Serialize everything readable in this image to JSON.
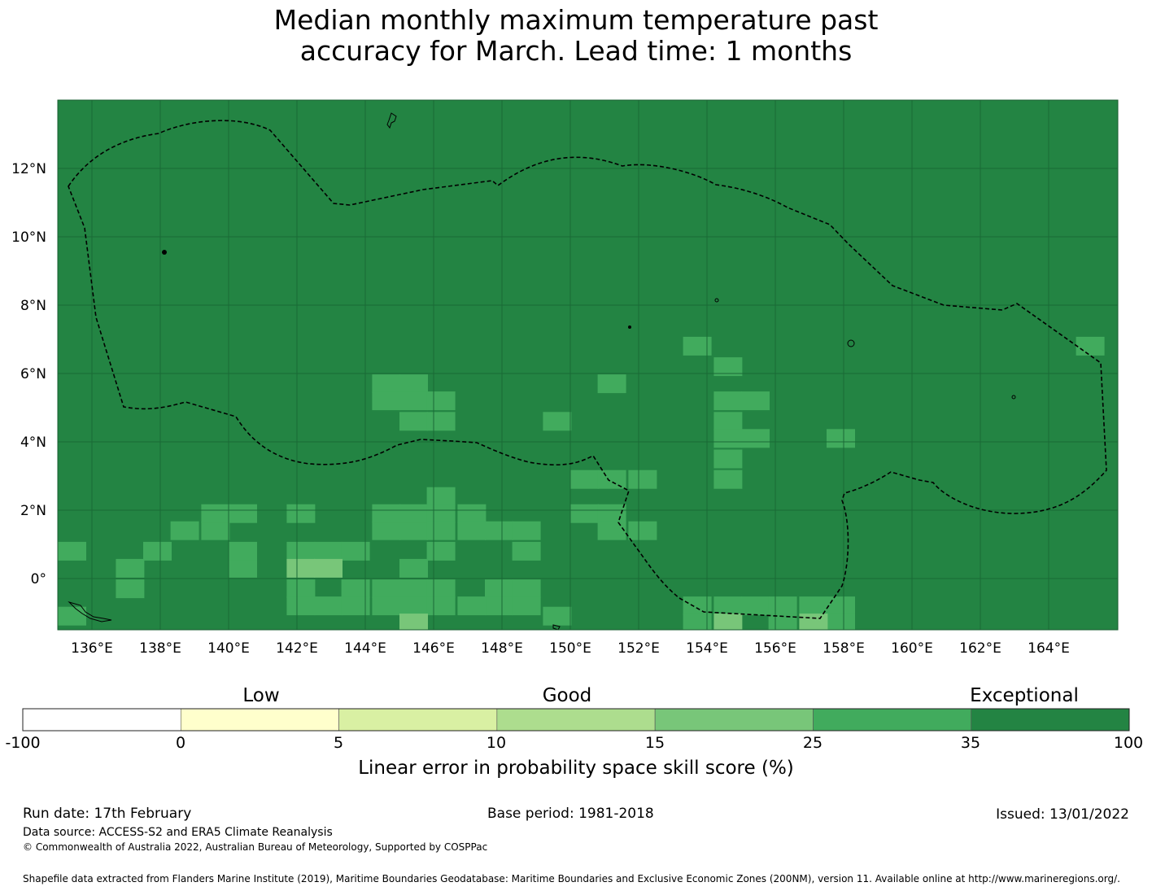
{
  "title": {
    "line1": "Median monthly maximum temperature past",
    "line2": "accuracy for March. Lead time: 1 months"
  },
  "map": {
    "lon_range": [
      135,
      166
    ],
    "lat_range": [
      -1.5,
      14
    ],
    "background_color": "#238443",
    "lon_ticks": [
      "136°E",
      "138°E",
      "140°E",
      "142°E",
      "144°E",
      "146°E",
      "148°E",
      "150°E",
      "152°E",
      "154°E",
      "156°E",
      "158°E",
      "160°E",
      "162°E",
      "164°E"
    ],
    "lat_ticks": [
      "12°N",
      "10°N",
      "8°N",
      "6°N",
      "4°N",
      "2°N",
      "0°"
    ],
    "grid": true,
    "boundary": "dashed EEZ outline",
    "cells_note": "skill class per 5/6-degree grid cell",
    "cells": [
      {
        "lon": 135.0,
        "lat": 0.8,
        "class": "25-35"
      },
      {
        "lon": 135.0,
        "lat": -1.1,
        "class": "25-35"
      },
      {
        "lon": 136.7,
        "lat": -0.3,
        "class": "25-35"
      },
      {
        "lon": 136.7,
        "lat": 0.3,
        "class": "25-35"
      },
      {
        "lon": 137.5,
        "lat": 0.8,
        "class": "25-35"
      },
      {
        "lon": 138.3,
        "lat": 1.4,
        "class": "25-35"
      },
      {
        "lon": 139.2,
        "lat": 1.4,
        "class": "25-35"
      },
      {
        "lon": 139.2,
        "lat": 1.9,
        "class": "25-35"
      },
      {
        "lon": 140.0,
        "lat": 1.9,
        "class": "25-35"
      },
      {
        "lon": 140.0,
        "lat": 0.3,
        "class": "25-35"
      },
      {
        "lon": 140.0,
        "lat": 0.8,
        "class": "25-35"
      },
      {
        "lon": 141.7,
        "lat": 1.9,
        "class": "25-35"
      },
      {
        "lon": 141.7,
        "lat": 0.8,
        "class": "25-35"
      },
      {
        "lon": 142.5,
        "lat": 0.8,
        "class": "25-35"
      },
      {
        "lon": 143.3,
        "lat": 0.8,
        "class": "25-35"
      },
      {
        "lon": 141.7,
        "lat": 0.3,
        "class": "15-25"
      },
      {
        "lon": 142.5,
        "lat": 0.3,
        "class": "15-25"
      },
      {
        "lon": 141.7,
        "lat": -0.3,
        "class": "25-35"
      },
      {
        "lon": 141.7,
        "lat": -0.8,
        "class": "25-35"
      },
      {
        "lon": 142.5,
        "lat": -0.8,
        "class": "25-35"
      },
      {
        "lon": 143.3,
        "lat": -0.3,
        "class": "25-35"
      },
      {
        "lon": 143.3,
        "lat": -0.8,
        "class": "25-35"
      },
      {
        "lon": 144.2,
        "lat": -0.3,
        "class": "25-35"
      },
      {
        "lon": 144.2,
        "lat": -0.8,
        "class": "25-35"
      },
      {
        "lon": 144.2,
        "lat": 1.4,
        "class": "25-35"
      },
      {
        "lon": 144.2,
        "lat": 1.9,
        "class": "25-35"
      },
      {
        "lon": 145.0,
        "lat": 1.4,
        "class": "25-35"
      },
      {
        "lon": 145.0,
        "lat": 1.9,
        "class": "25-35"
      },
      {
        "lon": 145.0,
        "lat": 0.3,
        "class": "25-35"
      },
      {
        "lon": 145.0,
        "lat": -0.3,
        "class": "25-35"
      },
      {
        "lon": 145.0,
        "lat": -0.8,
        "class": "25-35"
      },
      {
        "lon": 145.8,
        "lat": 2.4,
        "class": "25-35"
      },
      {
        "lon": 145.8,
        "lat": 1.9,
        "class": "25-35"
      },
      {
        "lon": 145.8,
        "lat": 1.4,
        "class": "25-35"
      },
      {
        "lon": 145.8,
        "lat": 0.8,
        "class": "25-35"
      },
      {
        "lon": 145.8,
        "lat": -0.3,
        "class": "25-35"
      },
      {
        "lon": 145.8,
        "lat": -0.8,
        "class": "25-35"
      },
      {
        "lon": 146.7,
        "lat": 1.9,
        "class": "25-35"
      },
      {
        "lon": 146.7,
        "lat": 1.4,
        "class": "25-35"
      },
      {
        "lon": 147.5,
        "lat": 1.4,
        "class": "25-35"
      },
      {
        "lon": 148.3,
        "lat": 1.4,
        "class": "25-35"
      },
      {
        "lon": 148.3,
        "lat": 0.8,
        "class": "25-35"
      },
      {
        "lon": 147.5,
        "lat": -0.3,
        "class": "25-35"
      },
      {
        "lon": 147.5,
        "lat": -0.8,
        "class": "25-35"
      },
      {
        "lon": 148.3,
        "lat": -0.3,
        "class": "25-35"
      },
      {
        "lon": 148.3,
        "lat": -0.8,
        "class": "25-35"
      },
      {
        "lon": 146.7,
        "lat": -0.8,
        "class": "25-35"
      },
      {
        "lon": 144.2,
        "lat": 5.7,
        "class": "25-35"
      },
      {
        "lon": 144.2,
        "lat": 5.2,
        "class": "25-35"
      },
      {
        "lon": 145.0,
        "lat": 5.7,
        "class": "25-35"
      },
      {
        "lon": 145.0,
        "lat": 5.2,
        "class": "25-35"
      },
      {
        "lon": 145.0,
        "lat": 4.6,
        "class": "25-35"
      },
      {
        "lon": 145.8,
        "lat": 5.2,
        "class": "25-35"
      },
      {
        "lon": 145.8,
        "lat": 4.6,
        "class": "25-35"
      },
      {
        "lon": 149.2,
        "lat": 4.6,
        "class": "25-35"
      },
      {
        "lon": 150.8,
        "lat": 5.7,
        "class": "25-35"
      },
      {
        "lon": 150.0,
        "lat": 2.9,
        "class": "25-35"
      },
      {
        "lon": 150.8,
        "lat": 2.9,
        "class": "25-35"
      },
      {
        "lon": 151.7,
        "lat": 2.9,
        "class": "25-35"
      },
      {
        "lon": 150.0,
        "lat": 1.9,
        "class": "25-35"
      },
      {
        "lon": 150.8,
        "lat": 1.9,
        "class": "25-35"
      },
      {
        "lon": 150.8,
        "lat": 1.4,
        "class": "25-35"
      },
      {
        "lon": 151.7,
        "lat": 1.4,
        "class": "25-35"
      },
      {
        "lon": 149.2,
        "lat": -1.1,
        "class": "25-35"
      },
      {
        "lon": 153.3,
        "lat": 6.8,
        "class": "25-35"
      },
      {
        "lon": 154.2,
        "lat": 6.2,
        "class": "25-35"
      },
      {
        "lon": 154.2,
        "lat": 5.2,
        "class": "25-35"
      },
      {
        "lon": 155.0,
        "lat": 5.2,
        "class": "25-35"
      },
      {
        "lon": 154.2,
        "lat": 4.6,
        "class": "25-35"
      },
      {
        "lon": 154.2,
        "lat": 4.1,
        "class": "25-35"
      },
      {
        "lon": 155.0,
        "lat": 4.1,
        "class": "25-35"
      },
      {
        "lon": 154.2,
        "lat": 3.5,
        "class": "25-35"
      },
      {
        "lon": 154.2,
        "lat": 2.9,
        "class": "25-35"
      },
      {
        "lon": 157.5,
        "lat": 4.1,
        "class": "25-35"
      },
      {
        "lon": 164.8,
        "lat": 6.8,
        "class": "25-35"
      },
      {
        "lon": 153.3,
        "lat": -0.8,
        "class": "25-35"
      },
      {
        "lon": 153.3,
        "lat": -1.3,
        "class": "25-35"
      },
      {
        "lon": 154.2,
        "lat": -0.8,
        "class": "25-35"
      },
      {
        "lon": 155.0,
        "lat": -0.8,
        "class": "25-35"
      },
      {
        "lon": 155.8,
        "lat": -0.8,
        "class": "25-35"
      },
      {
        "lon": 156.7,
        "lat": -0.8,
        "class": "25-35"
      },
      {
        "lon": 157.5,
        "lat": -0.8,
        "class": "25-35"
      },
      {
        "lon": 157.5,
        "lat": -1.3,
        "class": "25-35"
      },
      {
        "lon": 155.8,
        "lat": -1.3,
        "class": "25-35"
      },
      {
        "lon": 154.2,
        "lat": -1.3,
        "class": "15-25"
      },
      {
        "lon": 156.7,
        "lat": -1.3,
        "class": "15-25"
      },
      {
        "lon": 145.0,
        "lat": -1.3,
        "class": "15-25"
      }
    ]
  },
  "colorbar": {
    "ticks": [
      "-100",
      "0",
      "5",
      "10",
      "15",
      "25",
      "35",
      "100"
    ],
    "colors": [
      "#ffffff",
      "#ffffcc",
      "#d9f0a3",
      "#addd8e",
      "#78c679",
      "#41ab5d",
      "#238443"
    ],
    "category_low": "Low",
    "category_good": "Good",
    "category_exceptional": "Exceptional",
    "label": "Linear error in probability space skill score (%)"
  },
  "footer": {
    "run_date": "Run date: 17th February",
    "base_period": "Base period: 1981-2018",
    "issued": "Issued: 13/01/2022",
    "data_source": "Data source: ACCESS-S2 and ERA5 Climate Reanalysis",
    "copyright": "© Commonwealth of Australia 2022, Australian Bureau of Meteorology, Supported by COSPPac",
    "shapefile": "Shapefile data extracted from Flanders Marine Institute (2019), Maritime Boundaries Geodatabase: Maritime Boundaries and Exclusive Economic Zones (200NM), version 11. Available online at http://www.marineregions.org/."
  }
}
